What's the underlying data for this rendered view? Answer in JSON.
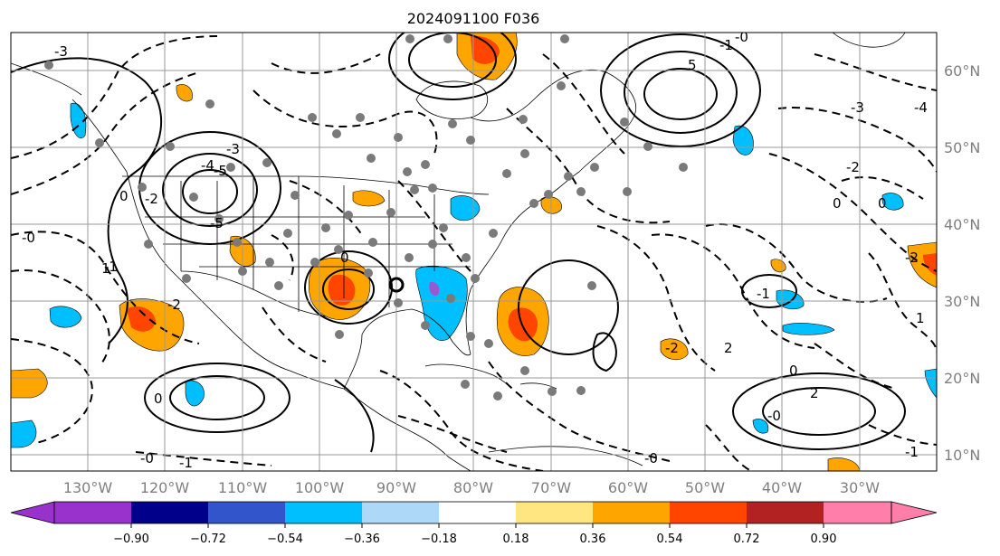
{
  "title": "2024091100 F036",
  "map": {
    "lat_labels": [
      "60°N",
      "50°N",
      "40°N",
      "30°N",
      "20°N",
      "10°N"
    ],
    "lon_labels": [
      "130°W",
      "120°W",
      "110°W",
      "100°W",
      "90°W",
      "80°W",
      "70°W",
      "60°W",
      "50°W",
      "40°W",
      "30°W"
    ],
    "extent": {
      "lon_min": -140,
      "lon_max": -20,
      "lat_min": 8,
      "lat_max": 65
    },
    "gridlines": true,
    "contour_labels": [
      "-3",
      "-5",
      "-4",
      "-3",
      "-2",
      "-1",
      "0",
      "-5",
      "-1",
      "-0",
      "5",
      "-3",
      "-2",
      "0",
      "-4",
      "-2",
      "-0",
      "1",
      "-2",
      "0",
      "-1",
      "-0",
      "-1",
      "0",
      "2",
      "1",
      "-2",
      "-0",
      "-1",
      "0",
      "-0",
      "2",
      "0"
    ],
    "contour_line_color": "#000000",
    "shading_colors": {
      "orange": "#ffa500",
      "red_orange": "#ff4500",
      "deep_sky_blue": "#00bfff",
      "medium_purple": "#9b59d0"
    }
  },
  "colorbar": {
    "tick_labels": [
      "−0.90",
      "−0.72",
      "−0.54",
      "−0.36",
      "−0.18",
      "0.18",
      "0.36",
      "0.54",
      "0.72",
      "0.90"
    ],
    "colors": [
      "#9932cc",
      "#00008b",
      "#3355cc",
      "#00bfff",
      "#add8f7",
      "#ffffff",
      "#ffe680",
      "#ffa500",
      "#ff4500",
      "#b22222",
      "#ff7faa"
    ],
    "extend": "both"
  }
}
